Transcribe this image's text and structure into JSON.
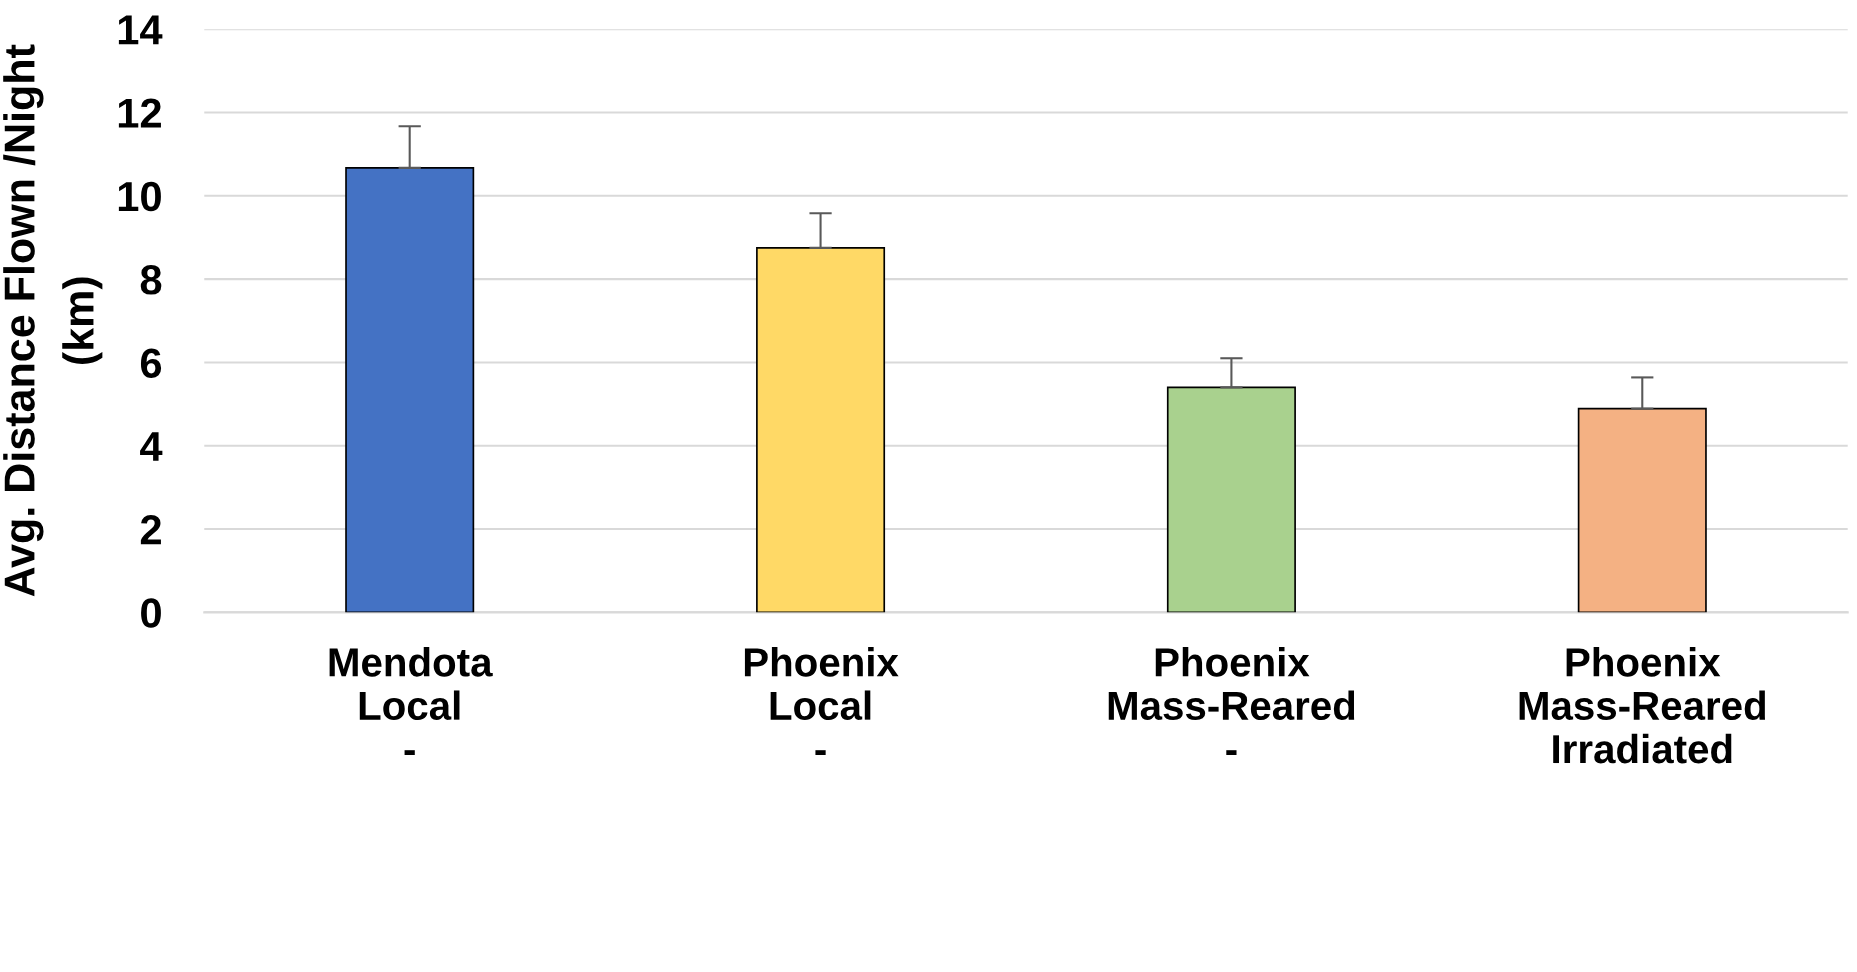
{
  "chart_data": {
    "type": "bar",
    "ylabel": "Avg. Distance Flown /Night\n(km)",
    "categories": [
      "Mendota\nLocal\n-",
      "Phoenix\nLocal\n-",
      "Phoenix\nMass-Reared\n-",
      "Phoenix\nMass-Reared\nIrradiated"
    ],
    "values": [
      10.67,
      8.75,
      5.4,
      4.89
    ],
    "colors": [
      "#4472c4",
      "#ffd966",
      "#a9d18e",
      "#f4b183"
    ],
    "errors": [
      [
        10.67,
        11.67
      ],
      [
        8.75,
        9.58
      ],
      [
        5.4,
        6.1
      ],
      [
        4.89,
        5.64
      ]
    ],
    "ylim": [
      0,
      14
    ],
    "yticks": [
      0,
      2,
      4,
      6,
      8,
      10,
      12,
      14
    ],
    "grid": "y"
  }
}
